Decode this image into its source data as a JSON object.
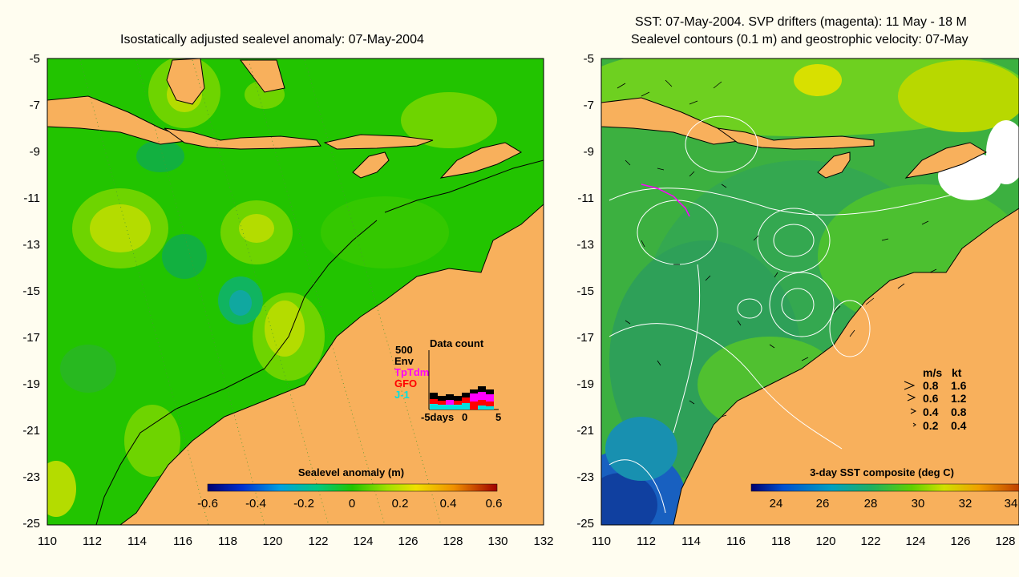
{
  "left_map": {
    "title": "Isostatically adjusted sealevel anomaly: 07-May-2004",
    "y_ticks": [
      "-5",
      "-7",
      "-9",
      "-11",
      "-13",
      "-15",
      "-17",
      "-19",
      "-21",
      "-23",
      "-25"
    ],
    "x_ticks": [
      "110",
      "112",
      "114",
      "116",
      "118",
      "120",
      "122",
      "124",
      "126",
      "128",
      "130",
      "132"
    ],
    "colorbar": {
      "title": "Sealevel anomaly (m)",
      "ticks": [
        "-0.6",
        "-0.4",
        "-0.2",
        "0",
        "0.2",
        "0.4",
        "0.6"
      ]
    },
    "data_count": {
      "title": "Data count",
      "y_label": "500",
      "legend": [
        {
          "label": "Env",
          "color": "#000000"
        },
        {
          "label": "TpTdm",
          "color": "#ff00ff"
        },
        {
          "label": "GFO",
          "color": "#ff0000"
        },
        {
          "label": "J-1",
          "color": "#00e0e0"
        }
      ],
      "x_ticks": [
        "-5days",
        "0",
        "5"
      ]
    }
  },
  "right_map": {
    "title_line1": "SST: 07-May-2004. SVP drifters (magenta): 11 May - 18 M",
    "title_line2": "Sealevel contours (0.1 m) and geostrophic velocity: 07-May",
    "y_ticks": [
      "-5",
      "-7",
      "-9",
      "-11",
      "-13",
      "-15",
      "-17",
      "-19",
      "-21",
      "-23",
      "-25"
    ],
    "x_ticks": [
      "110",
      "112",
      "114",
      "116",
      "118",
      "120",
      "122",
      "124",
      "126",
      "128"
    ],
    "colorbar": {
      "title": "3-day SST composite (deg C)",
      "ticks": [
        "24",
        "26",
        "28",
        "30",
        "32",
        "34"
      ]
    },
    "velocity_legend": {
      "header_ms": "m/s",
      "header_kt": "kt",
      "rows": [
        {
          "ms": "0.8",
          "kt": "1.6"
        },
        {
          "ms": "0.6",
          "kt": "1.2"
        },
        {
          "ms": "0.4",
          "kt": "0.8"
        },
        {
          "ms": "0.2",
          "kt": "0.4"
        }
      ]
    }
  },
  "colors": {
    "land": "#f8b05c",
    "ocean_green": "#22c400",
    "background": "#fffdf0"
  }
}
